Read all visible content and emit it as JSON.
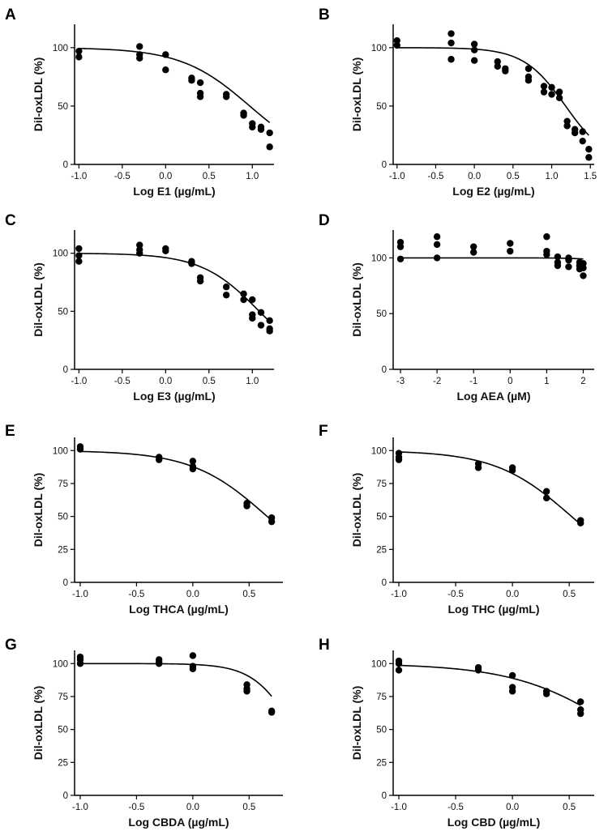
{
  "chart_data": [
    {
      "panel": "A",
      "type": "scatter",
      "xlabel": "Log E1 (µg/mL)",
      "ylabel": "Dil-oxLDL (%)",
      "xlim": [
        -1.05,
        1.25
      ],
      "ylim": [
        0,
        120
      ],
      "xticks": [
        -1.0,
        -0.5,
        0.0,
        0.5,
        1.0
      ],
      "xtick_labels": [
        "-1.0",
        "-0.5",
        "0.0",
        "0.5",
        "1.0"
      ],
      "yticks": [
        0,
        50,
        100
      ],
      "ytick_labels": [
        "0",
        "50",
        "100"
      ],
      "points": [
        [
          -1,
          97
        ],
        [
          -1,
          92
        ],
        [
          -0.3,
          101
        ],
        [
          -0.3,
          94
        ],
        [
          -0.3,
          91
        ],
        [
          0,
          94
        ],
        [
          0,
          81
        ],
        [
          0.3,
          74
        ],
        [
          0.3,
          72
        ],
        [
          0.4,
          70
        ],
        [
          0.4,
          61
        ],
        [
          0.4,
          58
        ],
        [
          0.7,
          60
        ],
        [
          0.7,
          58
        ],
        [
          0.9,
          44
        ],
        [
          0.9,
          42
        ],
        [
          1,
          35
        ],
        [
          1,
          32
        ],
        [
          1.1,
          32
        ],
        [
          1.1,
          30
        ],
        [
          1.2,
          27
        ],
        [
          1.2,
          15
        ]
      ],
      "fit": {
        "top": 100,
        "bottom": 0,
        "logIC50": 0.97,
        "hill": 1.1
      }
    },
    {
      "panel": "B",
      "type": "scatter",
      "xlabel": "Log E2 (µg/mL)",
      "ylabel": "Dil-oxLDL (%)",
      "xlim": [
        -1.05,
        1.55
      ],
      "ylim": [
        0,
        120
      ],
      "xticks": [
        -1.0,
        -0.5,
        0.0,
        0.5,
        1.0,
        1.5
      ],
      "xtick_labels": [
        "-1.0",
        "-0.5",
        "0.0",
        "0.5",
        "1.0",
        "1.5"
      ],
      "yticks": [
        0,
        50,
        100
      ],
      "ytick_labels": [
        "0",
        "50",
        "100"
      ],
      "points": [
        [
          -1,
          106
        ],
        [
          -1,
          102
        ],
        [
          -0.3,
          112
        ],
        [
          -0.3,
          104
        ],
        [
          -0.3,
          90
        ],
        [
          0,
          103
        ],
        [
          0,
          98
        ],
        [
          0,
          89
        ],
        [
          0.3,
          88
        ],
        [
          0.3,
          84
        ],
        [
          0.4,
          82
        ],
        [
          0.4,
          80
        ],
        [
          0.7,
          82
        ],
        [
          0.7,
          75
        ],
        [
          0.7,
          72
        ],
        [
          0.9,
          67
        ],
        [
          0.9,
          62
        ],
        [
          1,
          66
        ],
        [
          1,
          60
        ],
        [
          1.1,
          62
        ],
        [
          1.1,
          57
        ],
        [
          1.2,
          37
        ],
        [
          1.2,
          33
        ],
        [
          1.3,
          30
        ],
        [
          1.3,
          27
        ],
        [
          1.4,
          28
        ],
        [
          1.4,
          20
        ],
        [
          1.48,
          13
        ],
        [
          1.48,
          6
        ]
      ],
      "fit": {
        "top": 100,
        "bottom": 0,
        "logIC50": 1.18,
        "hill": 1.6
      }
    },
    {
      "panel": "C",
      "type": "scatter",
      "xlabel": "Log E3 (µg/mL)",
      "ylabel": "Dil-oxLDL (%)",
      "xlim": [
        -1.05,
        1.25
      ],
      "ylim": [
        0,
        120
      ],
      "xticks": [
        -1.0,
        -0.5,
        0.0,
        0.5,
        1.0
      ],
      "xtick_labels": [
        "-1.0",
        "-0.5",
        "0.0",
        "0.5",
        "1.0"
      ],
      "yticks": [
        0,
        50,
        100
      ],
      "ytick_labels": [
        "0",
        "50",
        "100"
      ],
      "points": [
        [
          -1,
          104
        ],
        [
          -1,
          98
        ],
        [
          -1,
          93
        ],
        [
          -0.3,
          107
        ],
        [
          -0.3,
          103
        ],
        [
          -0.3,
          100
        ],
        [
          0,
          104
        ],
        [
          0,
          102
        ],
        [
          0.3,
          93
        ],
        [
          0.3,
          91
        ],
        [
          0.4,
          79
        ],
        [
          0.4,
          76
        ],
        [
          0.7,
          71
        ],
        [
          0.7,
          64
        ],
        [
          0.9,
          65
        ],
        [
          0.9,
          60
        ],
        [
          1,
          60
        ],
        [
          1,
          47
        ],
        [
          1,
          44
        ],
        [
          1.1,
          49
        ],
        [
          1.1,
          38
        ],
        [
          1.2,
          42
        ],
        [
          1.2,
          35
        ],
        [
          1.2,
          33
        ]
      ],
      "fit": {
        "top": 100,
        "bottom": 0,
        "logIC50": 1.08,
        "hill": 1.3
      }
    },
    {
      "panel": "D",
      "type": "scatter",
      "xlabel": "Log AEA (µM)",
      "ylabel": "Dil-oxLDL (%)",
      "xlim": [
        -3.2,
        2.3
      ],
      "ylim": [
        0,
        125
      ],
      "xticks": [
        -3,
        -2,
        -1,
        0,
        1,
        2
      ],
      "xtick_labels": [
        "-3",
        "-2",
        "-1",
        "0",
        "1",
        "2"
      ],
      "yticks": [
        0,
        50,
        100
      ],
      "ytick_labels": [
        "0",
        "50",
        "100"
      ],
      "points": [
        [
          -3,
          114
        ],
        [
          -3,
          110
        ],
        [
          -3,
          99
        ],
        [
          -2,
          119
        ],
        [
          -2,
          112
        ],
        [
          -2,
          100
        ],
        [
          -1,
          110
        ],
        [
          -1,
          105
        ],
        [
          0,
          113
        ],
        [
          0,
          106
        ],
        [
          1,
          119
        ],
        [
          1,
          106
        ],
        [
          1,
          103
        ],
        [
          1.3,
          101
        ],
        [
          1.3,
          96
        ],
        [
          1.3,
          93
        ],
        [
          1.6,
          100
        ],
        [
          1.6,
          98
        ],
        [
          1.6,
          92
        ],
        [
          1.9,
          96
        ],
        [
          1.9,
          93
        ],
        [
          1.9,
          90
        ],
        [
          2,
          95
        ],
        [
          2,
          91
        ],
        [
          2,
          84
        ]
      ],
      "fit": {
        "top": 100,
        "bottom": 0,
        "logIC50": 4.0,
        "hill": 1.0
      }
    },
    {
      "panel": "E",
      "type": "scatter",
      "xlabel": "Log THCA (µg/mL)",
      "ylabel": "Dil-oxLDL (%)",
      "xlim": [
        -1.05,
        0.8
      ],
      "ylim": [
        0,
        110
      ],
      "xticks": [
        -1.0,
        -0.5,
        0.0,
        0.5
      ],
      "xtick_labels": [
        "-1.0",
        "-0.5",
        "0.0",
        "0.5"
      ],
      "yticks": [
        0,
        25,
        50,
        75,
        100
      ],
      "ytick_labels": [
        "0",
        "25",
        "50",
        "75",
        "100"
      ],
      "points": [
        [
          -1,
          103
        ],
        [
          -1,
          101
        ],
        [
          -0.3,
          95
        ],
        [
          -0.3,
          93
        ],
        [
          0,
          92
        ],
        [
          0,
          88
        ],
        [
          0,
          86
        ],
        [
          0.48,
          60
        ],
        [
          0.48,
          58
        ],
        [
          0.7,
          49
        ],
        [
          0.7,
          46
        ]
      ],
      "fit": {
        "top": 100,
        "bottom": 0,
        "logIC50": 0.66,
        "hill": 1.3
      }
    },
    {
      "panel": "F",
      "type": "scatter",
      "xlabel": "Log THC (µg/mL)",
      "ylabel": "Dil-oxLDL (%)",
      "xlim": [
        -1.05,
        0.72
      ],
      "ylim": [
        0,
        110
      ],
      "xticks": [
        -1.0,
        -0.5,
        0.0,
        0.5
      ],
      "xtick_labels": [
        "-1.0",
        "-0.5",
        "0.0",
        "0.5"
      ],
      "yticks": [
        0,
        25,
        50,
        75,
        100
      ],
      "ytick_labels": [
        "0",
        "25",
        "50",
        "75",
        "100"
      ],
      "points": [
        [
          -1,
          98
        ],
        [
          -1,
          95
        ],
        [
          -1,
          93
        ],
        [
          -0.3,
          90
        ],
        [
          -0.3,
          87
        ],
        [
          0,
          87
        ],
        [
          0,
          85
        ],
        [
          0.3,
          69
        ],
        [
          0.3,
          64
        ],
        [
          0.6,
          47
        ],
        [
          0.6,
          45
        ]
      ],
      "fit": {
        "top": 100,
        "bottom": 0,
        "logIC50": 0.52,
        "hill": 1.3
      }
    },
    {
      "panel": "G",
      "type": "scatter",
      "xlabel": "Log CBDA (µg/mL)",
      "ylabel": "Dil-oxLDL (%)",
      "xlim": [
        -1.05,
        0.8
      ],
      "ylim": [
        0,
        110
      ],
      "xticks": [
        -1.0,
        -0.5,
        0.0,
        0.5
      ],
      "xtick_labels": [
        "-1.0",
        "-0.5",
        "0.0",
        "0.5"
      ],
      "yticks": [
        0,
        25,
        50,
        75,
        100
      ],
      "ytick_labels": [
        "0",
        "25",
        "50",
        "75",
        "100"
      ],
      "points": [
        [
          -1,
          105
        ],
        [
          -1,
          103
        ],
        [
          -1,
          100
        ],
        [
          -0.3,
          103
        ],
        [
          -0.3,
          101
        ],
        [
          -0.3,
          100
        ],
        [
          0,
          106
        ],
        [
          0,
          98
        ],
        [
          0,
          96
        ],
        [
          0.48,
          84
        ],
        [
          0.48,
          81
        ],
        [
          0.48,
          79
        ],
        [
          0.7,
          64
        ],
        [
          0.7,
          63
        ]
      ],
      "fit": {
        "top": 100,
        "bottom": 0,
        "logIC50": 0.9,
        "hill": 2.4
      }
    },
    {
      "panel": "H",
      "type": "scatter",
      "xlabel": "Log CBD (µg/mL)",
      "ylabel": "Dil-oxLDL (%)",
      "xlim": [
        -1.05,
        0.72
      ],
      "ylim": [
        0,
        110
      ],
      "xticks": [
        -1.0,
        -0.5,
        0.0,
        0.5
      ],
      "xtick_labels": [
        "-1.0",
        "-0.5",
        "0.0",
        "0.5"
      ],
      "yticks": [
        0,
        25,
        50,
        75,
        100
      ],
      "ytick_labels": [
        "0",
        "25",
        "50",
        "75",
        "100"
      ],
      "points": [
        [
          -1,
          102
        ],
        [
          -1,
          100
        ],
        [
          -1,
          95
        ],
        [
          -0.3,
          97
        ],
        [
          -0.3,
          95
        ],
        [
          0,
          91
        ],
        [
          0,
          82
        ],
        [
          0,
          79
        ],
        [
          0.3,
          79
        ],
        [
          0.3,
          77
        ],
        [
          0.6,
          71
        ],
        [
          0.6,
          65
        ],
        [
          0.6,
          62
        ]
      ],
      "fit": {
        "top": 100,
        "bottom": 0,
        "logIC50": 0.95,
        "hill": 0.95
      }
    }
  ]
}
